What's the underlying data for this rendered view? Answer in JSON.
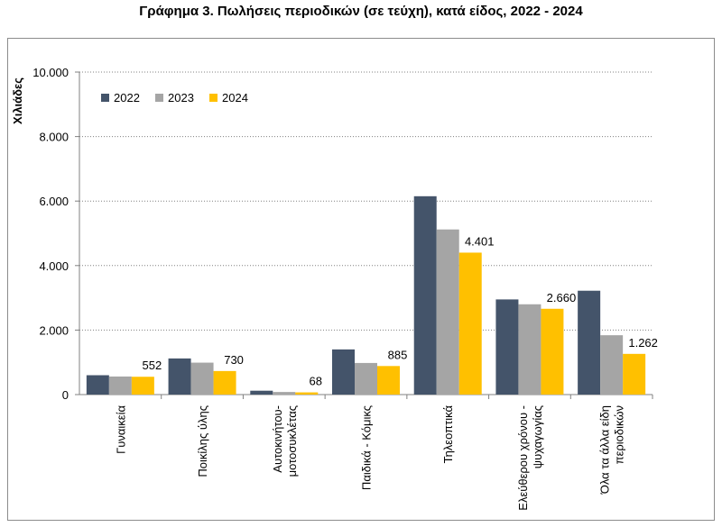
{
  "chart_data": {
    "type": "bar",
    "title": "Γράφημα 3. Πωλήσεις περιοδικών (σε τεύχη), κατά είδος, 2022 - 2024",
    "ylabel": "Χιλιάδες",
    "xlabel": "",
    "ylim": [
      0,
      10000
    ],
    "yticks": [
      0,
      2000,
      4000,
      6000,
      8000,
      10000
    ],
    "ytick_labels": [
      "0",
      "2.000",
      "4.000",
      "6.000",
      "8.000",
      "10.000"
    ],
    "grid": true,
    "legend_position": "top-left",
    "categories": [
      [
        "Γυναικεία"
      ],
      [
        "Ποικίλης ύλης"
      ],
      [
        "Αυτοκινήτου-",
        "μοτοσυκλέτας"
      ],
      [
        "Παιδικά - Κόμικς"
      ],
      [
        "Τηλεοπτικά"
      ],
      [
        "Ελεύθερου χρόνου -",
        "ψυχαγωγίας"
      ],
      [
        "Όλα τα άλλα είδη",
        "περιοδικών"
      ]
    ],
    "series": [
      {
        "name": "2022",
        "color": "#44546a",
        "values": [
          600,
          1120,
          120,
          1400,
          6150,
          2950,
          3220
        ]
      },
      {
        "name": "2023",
        "color": "#a5a5a5",
        "values": [
          560,
          990,
          80,
          980,
          5120,
          2800,
          1840
        ]
      },
      {
        "name": "2024",
        "color": "#ffc000",
        "values": [
          552,
          730,
          68,
          885,
          4401,
          2660,
          1262
        ]
      }
    ],
    "data_labels": [
      "552",
      "730",
      "68",
      "885",
      "4.401",
      "2.660",
      "1.262"
    ]
  }
}
